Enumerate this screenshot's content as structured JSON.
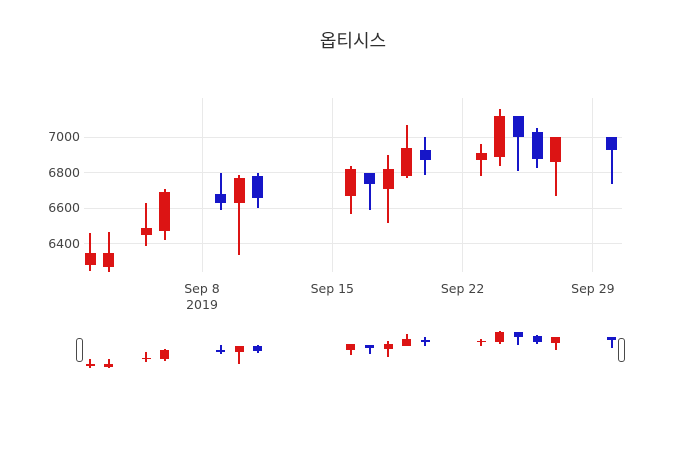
{
  "title": "옵티시스",
  "colors": {
    "increasing": "#dc1414",
    "decreasing": "#1616c8",
    "grid": "#e9e9e9",
    "tick_text": "#444444",
    "title_text": "#2f2f2f",
    "handle_fill": "#ffffff",
    "handle_border": "#4a4a4a"
  },
  "y_axis": {
    "ticks": [
      {
        "label": "7000",
        "value": 7000
      },
      {
        "label": "6800",
        "value": 6800
      },
      {
        "label": "6600",
        "value": 6600
      },
      {
        "label": "6400",
        "value": 6400
      }
    ]
  },
  "x_axis": {
    "ticks": [
      {
        "label": "Sep 8",
        "sublabel": "2019",
        "day": 8
      },
      {
        "label": "Sep 15",
        "sublabel": "",
        "day": 15
      },
      {
        "label": "Sep 22",
        "sublabel": "",
        "day": 22
      },
      {
        "label": "Sep 29",
        "sublabel": "",
        "day": 29
      }
    ]
  },
  "chart_data": {
    "type": "candlestick",
    "title": "옵티시스",
    "x_unit": "day of September 2019",
    "ylim": [
      6240,
      7225
    ],
    "grid": true,
    "rangeslider": true,
    "increasing_color": "#dc1414",
    "decreasing_color": "#1616c8",
    "candles": [
      {
        "date": "Sep 2",
        "day": 2,
        "open": 6280,
        "high": 6460,
        "low": 6250,
        "close": 6350
      },
      {
        "date": "Sep 3",
        "day": 3,
        "open": 6270,
        "high": 6470,
        "low": 6240,
        "close": 6350
      },
      {
        "date": "Sep 5",
        "day": 5,
        "open": 6450,
        "high": 6630,
        "low": 6390,
        "close": 6490
      },
      {
        "date": "Sep 6",
        "day": 6,
        "open": 6470,
        "high": 6710,
        "low": 6420,
        "close": 6690
      },
      {
        "date": "Sep 9",
        "day": 9,
        "open": 6680,
        "high": 6800,
        "low": 6590,
        "close": 6630
      },
      {
        "date": "Sep 10",
        "day": 10,
        "open": 6630,
        "high": 6790,
        "low": 6340,
        "close": 6770
      },
      {
        "date": "Sep 11",
        "day": 11,
        "open": 6780,
        "high": 6800,
        "low": 6600,
        "close": 6660
      },
      {
        "date": "Sep 16",
        "day": 16,
        "open": 6670,
        "high": 6840,
        "low": 6570,
        "close": 6820
      },
      {
        "date": "Sep 17",
        "day": 17,
        "open": 6800,
        "high": 6800,
        "low": 6590,
        "close": 6740
      },
      {
        "date": "Sep 18",
        "day": 18,
        "open": 6710,
        "high": 6900,
        "low": 6520,
        "close": 6820
      },
      {
        "date": "Sep 19",
        "day": 19,
        "open": 6780,
        "high": 7070,
        "low": 6770,
        "close": 6940
      },
      {
        "date": "Sep 20",
        "day": 20,
        "open": 6930,
        "high": 7000,
        "low": 6790,
        "close": 6870
      },
      {
        "date": "Sep 23",
        "day": 23,
        "open": 6870,
        "high": 6960,
        "low": 6780,
        "close": 6910
      },
      {
        "date": "Sep 24",
        "day": 24,
        "open": 6890,
        "high": 7160,
        "low": 6840,
        "close": 7120
      },
      {
        "date": "Sep 25",
        "day": 25,
        "open": 7120,
        "high": 7120,
        "low": 6810,
        "close": 7000
      },
      {
        "date": "Sep 26",
        "day": 26,
        "open": 7030,
        "high": 7050,
        "low": 6830,
        "close": 6880
      },
      {
        "date": "Sep 27",
        "day": 27,
        "open": 6860,
        "high": 7000,
        "low": 6670,
        "close": 7000
      },
      {
        "date": "Sep 30",
        "day": 30,
        "open": 7000,
        "high": 7000,
        "low": 6740,
        "close": 6930
      }
    ]
  }
}
